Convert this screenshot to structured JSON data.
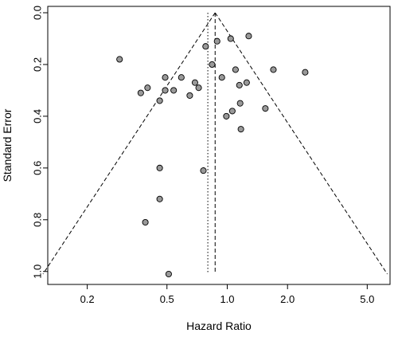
{
  "chart_data": {
    "type": "scatter",
    "subtype": "funnel-plot",
    "xlabel": "Hazard Ratio",
    "ylabel": "Standard Error",
    "x_scale": "log",
    "y_inverted": true,
    "xlim": [
      0.127,
      6.5
    ],
    "ylim": [
      0,
      1.01
    ],
    "x_ticks": [
      0.2,
      0.5,
      1.0,
      2.0,
      5.0
    ],
    "x_tick_labels": [
      "0.2",
      "0.5",
      "1.0",
      "2.0",
      "5.0"
    ],
    "y_ticks": [
      0.0,
      0.2,
      0.4,
      0.6,
      0.8,
      1.0
    ],
    "y_tick_labels": [
      "0.0",
      "0.2",
      "0.4",
      "0.6",
      "0.8",
      "1.0"
    ],
    "grid": false,
    "pooled_estimate": 0.87,
    "reference_line": 0.8,
    "funnel_se_max": 1.01,
    "points": [
      {
        "x": 1.28,
        "y": 0.09
      },
      {
        "x": 1.04,
        "y": 0.1
      },
      {
        "x": 0.89,
        "y": 0.11
      },
      {
        "x": 0.78,
        "y": 0.13
      },
      {
        "x": 0.29,
        "y": 0.18
      },
      {
        "x": 0.84,
        "y": 0.2
      },
      {
        "x": 1.7,
        "y": 0.22
      },
      {
        "x": 1.1,
        "y": 0.22
      },
      {
        "x": 2.45,
        "y": 0.23
      },
      {
        "x": 0.94,
        "y": 0.25
      },
      {
        "x": 0.49,
        "y": 0.25
      },
      {
        "x": 0.59,
        "y": 0.25
      },
      {
        "x": 0.69,
        "y": 0.27
      },
      {
        "x": 1.25,
        "y": 0.27
      },
      {
        "x": 1.15,
        "y": 0.28
      },
      {
        "x": 0.4,
        "y": 0.29
      },
      {
        "x": 0.72,
        "y": 0.29
      },
      {
        "x": 0.49,
        "y": 0.3
      },
      {
        "x": 0.54,
        "y": 0.3
      },
      {
        "x": 0.37,
        "y": 0.31
      },
      {
        "x": 0.65,
        "y": 0.32
      },
      {
        "x": 0.46,
        "y": 0.34
      },
      {
        "x": 1.16,
        "y": 0.35
      },
      {
        "x": 1.55,
        "y": 0.37
      },
      {
        "x": 1.06,
        "y": 0.38
      },
      {
        "x": 0.99,
        "y": 0.4
      },
      {
        "x": 1.17,
        "y": 0.45
      },
      {
        "x": 0.46,
        "y": 0.6
      },
      {
        "x": 0.76,
        "y": 0.61
      },
      {
        "x": 0.46,
        "y": 0.72
      },
      {
        "x": 0.39,
        "y": 0.81
      },
      {
        "x": 0.51,
        "y": 1.01
      }
    ],
    "colors": {
      "point_fill": "#999999",
      "point_stroke": "#000000",
      "line": "#000000"
    }
  }
}
